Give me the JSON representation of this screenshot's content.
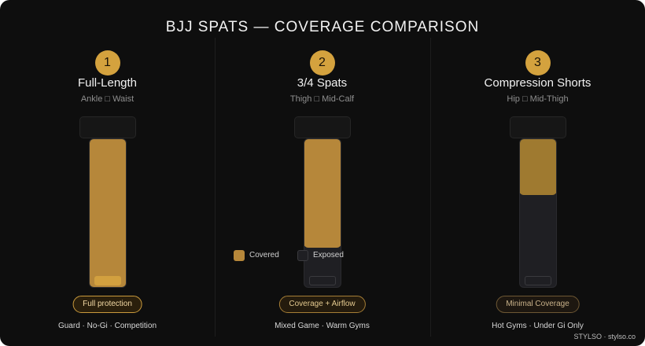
{
  "title": "BJJ SPATS — COVERAGE COMPARISON",
  "colors": {
    "covered": "#b6873a",
    "exposed": "#1f1f23",
    "badge": "#d4a23e",
    "background": "#0e0e0e"
  },
  "columns": [
    {
      "number": "1",
      "name": "Full-Length",
      "range": "Ankle □ Waist",
      "coverage": 1.0,
      "pill": "Full protection",
      "uses": "Guard · No-Gi · Competition"
    },
    {
      "number": "2",
      "name": "3/4 Spats",
      "range": "Thigh □ Mid-Calf",
      "coverage": 0.72,
      "pill": "Coverage + Airflow",
      "uses": "Mixed Game · Warm Gyms"
    },
    {
      "number": "3",
      "name": "Compression Shorts",
      "range": "Hip □ Mid-Thigh",
      "coverage": 0.37,
      "pill": "Minimal Coverage",
      "uses": "Hot Gyms · Under Gi Only"
    }
  ],
  "legend": {
    "covered": "Covered",
    "exposed": "Exposed"
  },
  "brand": "STYLSO · stylso.co"
}
